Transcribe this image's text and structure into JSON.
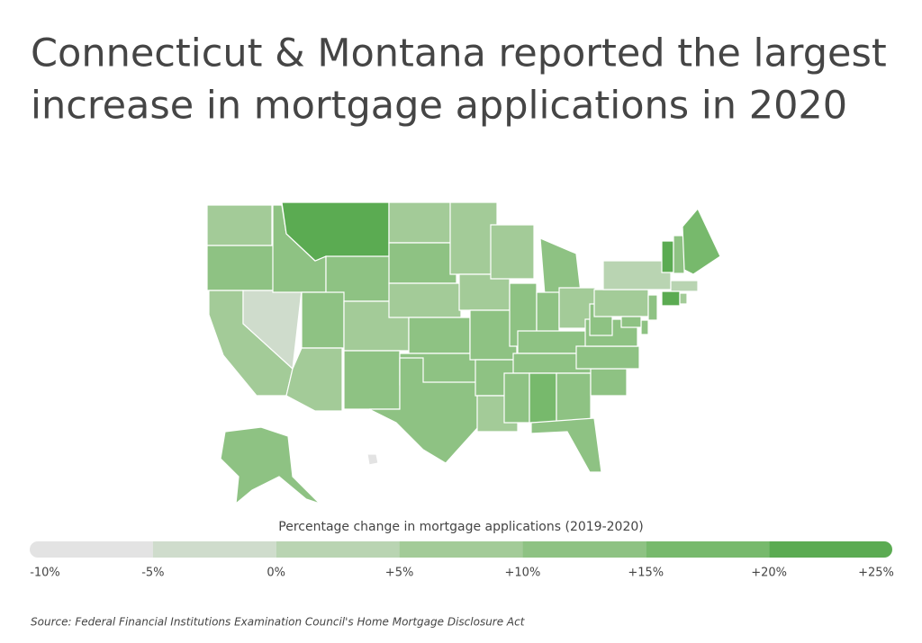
{
  "chart_data": {
    "type": "choropleth",
    "title": [
      "Connecticut & Montana reported the largest",
      "increase in mortgage applications in 2020"
    ],
    "legend_title": "Percentage change in mortgage applications (2019-2020)",
    "source": "Source:  Federal Financial Institutions Examination Council's Home Mortgage Disclosure Act",
    "xlim": [
      -10,
      25
    ],
    "xticks": [
      {
        "value": -10,
        "label": "-10%"
      },
      {
        "value": -5,
        "label": "-5%"
      },
      {
        "value": 0,
        "label": "0%"
      },
      {
        "value": 5,
        "label": "+5%"
      },
      {
        "value": 10,
        "label": "+10%"
      },
      {
        "value": 15,
        "label": "+15%"
      },
      {
        "value": 20,
        "label": "+20%"
      },
      {
        "value": 25,
        "label": "+25%"
      }
    ],
    "colors": [
      "#e3e3e3",
      "#cfdccc",
      "#b9d4b2",
      "#a3cb98",
      "#8ec283",
      "#77b96c",
      "#5bab52"
    ],
    "values": [
      7,
      12,
      7,
      -2,
      12,
      22,
      12,
      12,
      7,
      7,
      12,
      7,
      12,
      7,
      12,
      12,
      12,
      7,
      7,
      12,
      12,
      7,
      7,
      12,
      12,
      12,
      7,
      12,
      12,
      12,
      17,
      12,
      12,
      12,
      12,
      12,
      12,
      7,
      3,
      22,
      12,
      17,
      3,
      22,
      7,
      12,
      12,
      12,
      12,
      -7
    ]
  }
}
